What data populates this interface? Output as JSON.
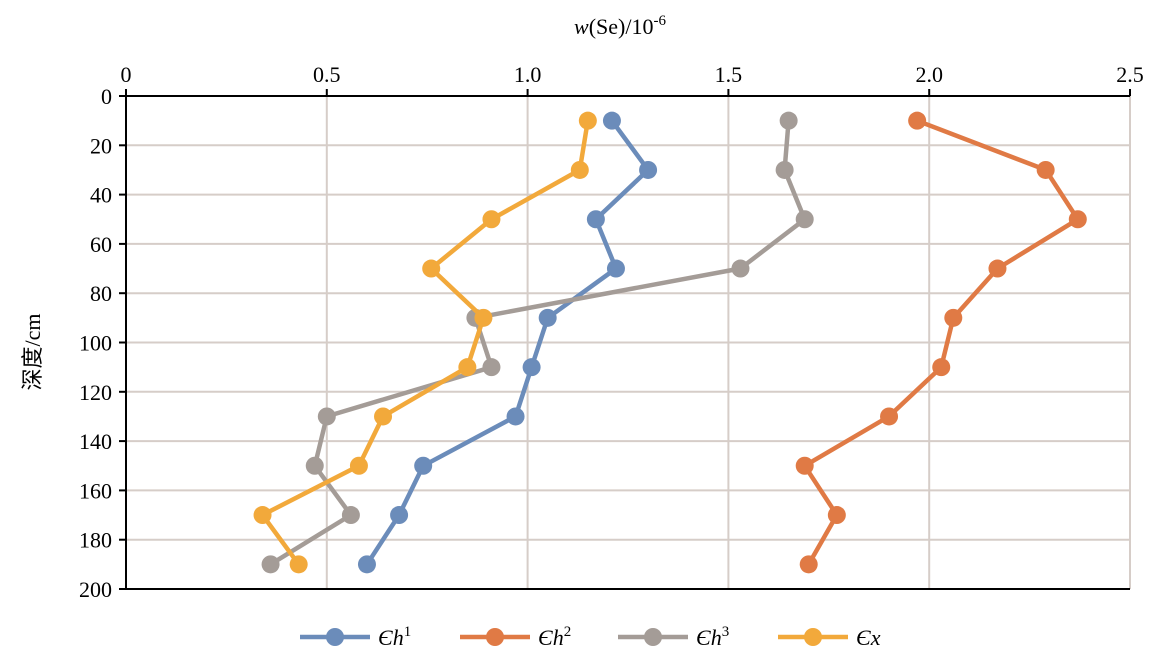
{
  "chart_data": {
    "type": "line",
    "xlabel_italic": "w",
    "xlabel_rest": "(Se)/10",
    "xlabel_sup": "-6",
    "ylabel": "深度/cm",
    "xlim": [
      0,
      2.5
    ],
    "ylim": [
      0,
      200
    ],
    "y_inverted": true,
    "x_axis_position": "top",
    "x_ticks": [
      0,
      0.5,
      1.0,
      1.5,
      2.0,
      2.5
    ],
    "x_tick_labels": [
      "0",
      "0.5",
      "1.0",
      "1.5",
      "2.0",
      "2.5"
    ],
    "y_ticks": [
      0,
      20,
      40,
      60,
      80,
      100,
      120,
      140,
      160,
      180,
      200
    ],
    "y_tick_labels": [
      "0",
      "20",
      "40",
      "60",
      "80",
      "100",
      "120",
      "140",
      "160",
      "180",
      "200"
    ],
    "grid": true,
    "legend_placement": "bottom",
    "series": [
      {
        "name_base": "Єh",
        "name_sup": "1",
        "color": "#6b8cba",
        "x": [
          1.21,
          1.3,
          1.17,
          1.22,
          1.05,
          1.01,
          0.97,
          0.74,
          0.68,
          0.6
        ],
        "y": [
          10,
          30,
          50,
          70,
          90,
          110,
          130,
          150,
          170,
          190
        ]
      },
      {
        "name_base": "Єh",
        "name_sup": "2",
        "color": "#e07a45",
        "x": [
          1.97,
          2.29,
          2.37,
          2.17,
          2.06,
          2.03,
          1.9,
          1.69,
          1.77,
          1.7
        ],
        "y": [
          10,
          30,
          50,
          70,
          90,
          110,
          130,
          150,
          170,
          190
        ]
      },
      {
        "name_base": "Єh",
        "name_sup": "3",
        "color": "#a49c97",
        "x": [
          1.65,
          1.64,
          1.69,
          1.53,
          0.87,
          0.91,
          0.5,
          0.47,
          0.56,
          0.36
        ],
        "y": [
          10,
          30,
          50,
          70,
          90,
          110,
          130,
          150,
          170,
          190
        ]
      },
      {
        "name_base": "Єx",
        "name_sup": "",
        "color": "#f2a93b",
        "x": [
          1.15,
          1.13,
          0.91,
          0.76,
          0.89,
          0.85,
          0.64,
          0.58,
          0.34,
          0.43
        ],
        "y": [
          10,
          30,
          50,
          70,
          90,
          110,
          130,
          150,
          170,
          190
        ]
      }
    ]
  }
}
